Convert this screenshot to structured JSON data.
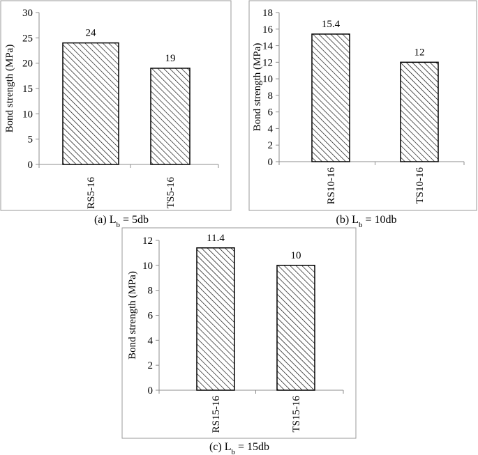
{
  "chart_data": [
    {
      "type": "bar",
      "caption_prefix": "(a) L",
      "caption_subscript": "b",
      "caption_suffix": " = 5db",
      "ylabel": "Bond strength (MPa)",
      "ylim": [
        0,
        30
      ],
      "yticks": [
        0,
        5,
        10,
        15,
        20,
        25,
        30
      ],
      "categories": [
        "RS5-16",
        "TS5-16"
      ],
      "values": [
        24,
        19
      ],
      "data_labels": [
        "24",
        "19"
      ],
      "bar_fill": "diagonal-hatch",
      "grid": false
    },
    {
      "type": "bar",
      "caption_prefix": "(b) L",
      "caption_subscript": "b",
      "caption_suffix": " = 10db",
      "ylabel": "Bond strength (MPa)",
      "ylim": [
        0,
        18
      ],
      "yticks": [
        0,
        2,
        4,
        6,
        8,
        10,
        12,
        14,
        16,
        18
      ],
      "categories": [
        "RS10-16",
        "TS10-16"
      ],
      "values": [
        15.4,
        12
      ],
      "data_labels": [
        "15.4",
        "12"
      ],
      "bar_fill": "diagonal-hatch",
      "grid": false
    },
    {
      "type": "bar",
      "caption_prefix": "(c) L",
      "caption_subscript": "b",
      "caption_suffix": " = 15db",
      "ylabel": "Bond strength (MPa)",
      "ylim": [
        0,
        12
      ],
      "yticks": [
        0,
        2,
        4,
        6,
        8,
        10,
        12
      ],
      "categories": [
        "RS15-16",
        "TS15-16"
      ],
      "values": [
        11.4,
        10
      ],
      "data_labels": [
        "11.4",
        "10"
      ],
      "bar_fill": "diagonal-hatch",
      "grid": false
    }
  ],
  "colors": {
    "frame": "#9a9a9a",
    "axis": "#8c8c8c",
    "bar_stroke": "#000000",
    "hatch": "#000000",
    "background": "#ffffff"
  }
}
